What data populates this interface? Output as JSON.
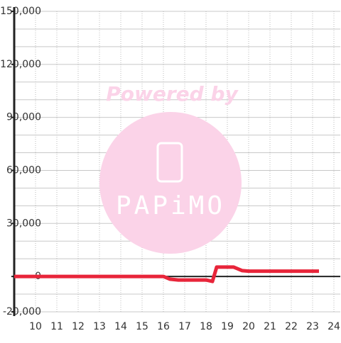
{
  "chart_data": {
    "type": "line",
    "x": [
      9,
      16,
      16.3,
      16.7,
      18,
      18.3,
      18.5,
      19.3,
      19.7,
      20,
      23.3
    ],
    "series": [
      {
        "color": "#e8253a",
        "values": [
          0,
          0,
          -1500,
          -2000,
          -2000,
          -2800,
          5300,
          5300,
          3300,
          3000,
          3000
        ]
      }
    ],
    "xlim": [
      9,
      24.3
    ],
    "xticks": [
      10,
      11,
      12,
      13,
      14,
      15,
      16,
      17,
      18,
      19,
      20,
      21,
      22,
      23,
      24
    ],
    "ylim": [
      -20000,
      150000
    ],
    "yticks": [
      {
        "value": -20000,
        "label": "-20,000"
      },
      0,
      {
        "value": 30000,
        "label": "30,000"
      },
      {
        "value": 60000,
        "label": "60,000"
      },
      {
        "value": 90000,
        "label": "90,000"
      },
      {
        "value": 120000,
        "label": "120,000"
      },
      {
        "value": 150000,
        "label": "150,000"
      }
    ],
    "yminorticks": [
      -20000,
      -10000,
      0,
      10000,
      20000,
      30000,
      40000,
      50000,
      60000,
      70000,
      80000,
      90000,
      100000,
      110000,
      120000,
      130000,
      140000,
      150000
    ],
    "grid": true,
    "watermark": {
      "line1": "Powered by",
      "line2": "PAPiMO"
    }
  }
}
